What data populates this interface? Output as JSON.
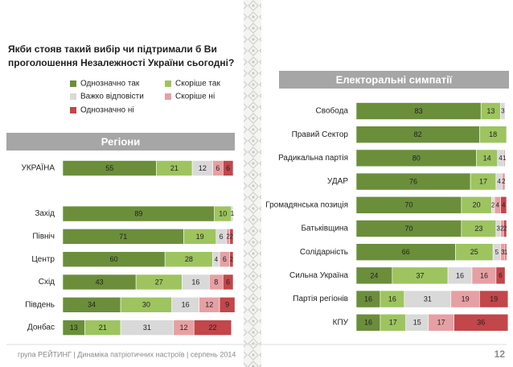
{
  "question": [
    "Якби стояв такий вибір чи підтримали б Ви",
    "проголошення Незалежності України сьогодні?"
  ],
  "footer": "група РЕЙТИНГ | Динаміка патріотичних настроїв | серпень 2014",
  "page_number": "12",
  "chart_data": [
    {
      "type": "stacked-barh",
      "title": "Регіони",
      "categories": [
        "УКРАЇНА",
        null,
        "Захід",
        "Північ",
        "Центр",
        "Схід",
        "Південь",
        "Донбас"
      ],
      "xlim": [
        0,
        100
      ],
      "series": [
        {
          "name": "Однозначно так",
          "color": "#6b8e3b",
          "values": [
            55,
            null,
            89,
            71,
            60,
            43,
            34,
            13
          ]
        },
        {
          "name": "Скоріше так",
          "color": "#9dc45f",
          "values": [
            21,
            null,
            10,
            19,
            28,
            27,
            30,
            21
          ]
        },
        {
          "name": "Важко відповісти",
          "color": "#d9d9d9",
          "values": [
            12,
            null,
            1,
            6,
            4,
            16,
            16,
            31
          ]
        },
        {
          "name": "Скоріше ні",
          "color": "#e6a0a3",
          "values": [
            6,
            null,
            null,
            2,
            6,
            8,
            12,
            12
          ]
        },
        {
          "name": "Однозначно ні",
          "color": "#c2464a",
          "values": [
            6,
            null,
            null,
            2,
            2,
            6,
            9,
            22
          ]
        }
      ]
    },
    {
      "type": "stacked-barh",
      "title": "Електоральні симпатії",
      "categories": [
        "Свобода",
        "Правий Сектор",
        "Радикальна партія",
        "УДАР",
        "Громадянська позиція",
        "Батьківщина",
        "Солідарність",
        "Сильна Україна",
        "Партія регіонів",
        "КПУ"
      ],
      "xlim": [
        0,
        100
      ],
      "series": [
        {
          "color": "#6b8e3b",
          "values": [
            83,
            82,
            80,
            76,
            70,
            70,
            66,
            24,
            16,
            16
          ]
        },
        {
          "color": "#9dc45f",
          "values": [
            13,
            18,
            14,
            17,
            20,
            23,
            25,
            37,
            16,
            17
          ]
        },
        {
          "color": "#d9d9d9",
          "values": [
            3,
            null,
            4,
            4,
            2,
            3,
            5,
            16,
            31,
            15
          ]
        },
        {
          "color": "#e6a0a3",
          "values": [
            null,
            null,
            1,
            2,
            4,
            2,
            3,
            16,
            19,
            17
          ]
        },
        {
          "color": "#c2464a",
          "values": [
            null,
            null,
            null,
            null,
            4,
            2,
            1,
            6,
            19,
            36
          ]
        }
      ]
    }
  ]
}
